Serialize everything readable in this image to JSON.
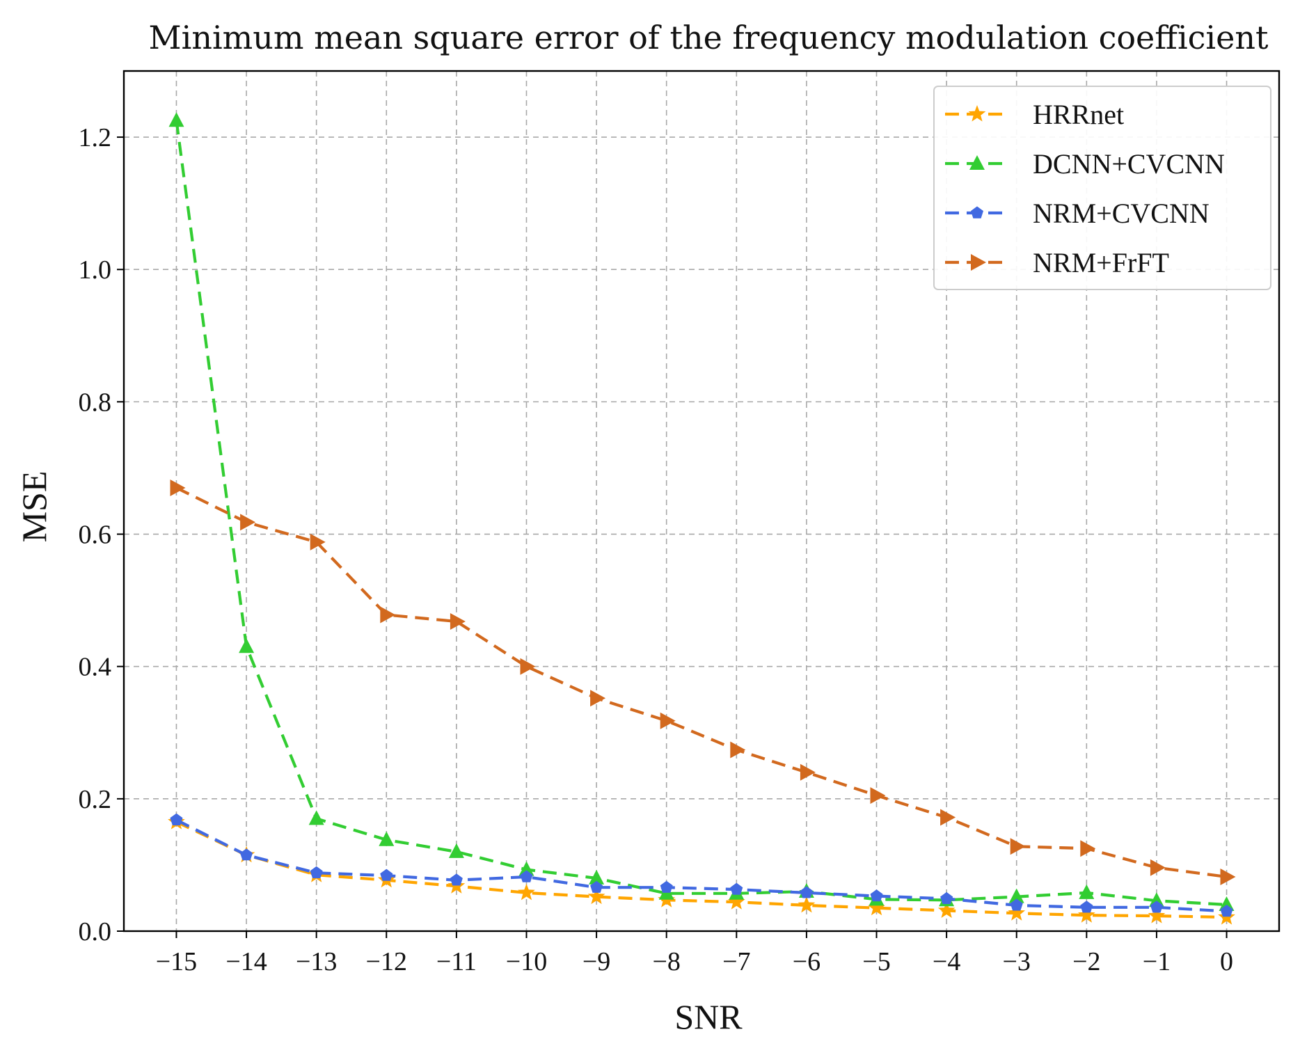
{
  "chart_data": {
    "type": "line",
    "title": "Minimum mean square error of the frequency modulation coefficient",
    "xlabel": "SNR",
    "ylabel": "MSE",
    "x": [
      -15,
      -14,
      -13,
      -12,
      -11,
      -10,
      -9,
      -8,
      -7,
      -6,
      -5,
      -4,
      -3,
      -2,
      -1,
      0
    ],
    "x_tick_labels": [
      "−15",
      "−14",
      "−13",
      "−12",
      "−11",
      "−10",
      "−9",
      "−8",
      "−7",
      "−6",
      "−5",
      "−4",
      "−3",
      "−2",
      "−1",
      "0"
    ],
    "y_ticks": [
      0.0,
      0.2,
      0.4,
      0.6,
      0.8,
      1.0,
      1.2
    ],
    "y_tick_labels": [
      "0.0",
      "0.2",
      "0.4",
      "0.6",
      "0.8",
      "1.0",
      "1.2"
    ],
    "xlim": [
      -15.75,
      0.75
    ],
    "ylim": [
      0.0,
      1.3
    ],
    "grid": true,
    "legend_position": "top-right",
    "series": [
      {
        "name": "HRRnet",
        "color": "#ffa500",
        "marker": "star",
        "values": [
          0.165,
          0.115,
          0.085,
          0.077,
          0.068,
          0.058,
          0.052,
          0.047,
          0.044,
          0.039,
          0.035,
          0.031,
          0.027,
          0.024,
          0.023,
          0.021
        ]
      },
      {
        "name": "DCNN+CVCNN",
        "color": "#32cd32",
        "marker": "triangle-up",
        "values": [
          1.225,
          0.43,
          0.17,
          0.138,
          0.12,
          0.093,
          0.08,
          0.057,
          0.057,
          0.06,
          0.048,
          0.047,
          0.052,
          0.058,
          0.046,
          0.04
        ]
      },
      {
        "name": "NRM+CVCNN",
        "color": "#4169e1",
        "marker": "pentagon",
        "values": [
          0.168,
          0.115,
          0.088,
          0.084,
          0.077,
          0.082,
          0.066,
          0.066,
          0.063,
          0.058,
          0.053,
          0.049,
          0.039,
          0.036,
          0.036,
          0.03
        ]
      },
      {
        "name": "NRM+FrFT",
        "color": "#d2691e",
        "marker": "triangle-right",
        "values": [
          0.67,
          0.618,
          0.588,
          0.478,
          0.468,
          0.4,
          0.352,
          0.318,
          0.274,
          0.24,
          0.205,
          0.172,
          0.128,
          0.125,
          0.096,
          0.082
        ]
      }
    ]
  }
}
